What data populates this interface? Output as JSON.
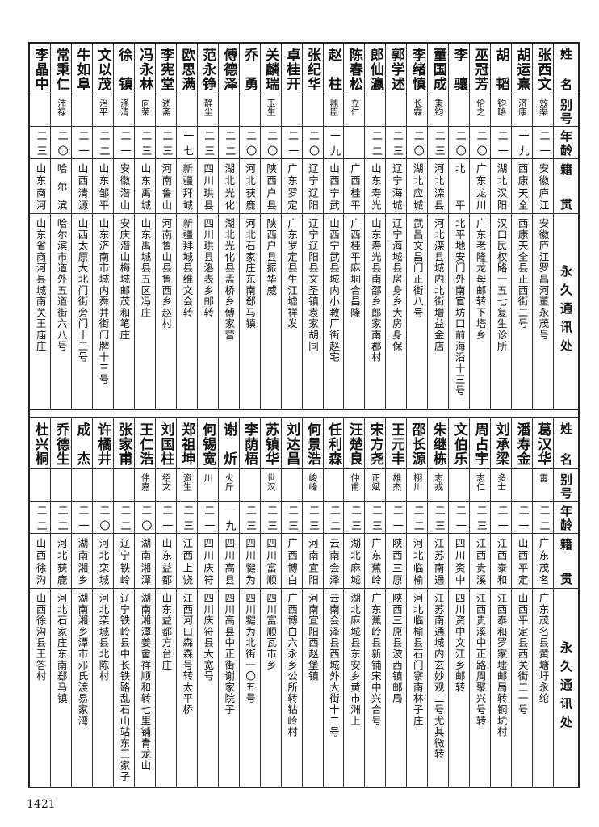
{
  "headers": {
    "name": "姓名",
    "alias": "别号",
    "age": "年龄",
    "place": "籍贯",
    "addr": "永久通讯处"
  },
  "top_rows": [
    {
      "name": "张西文",
      "alias": "效渠",
      "age": "二一",
      "place": "安徽庐江",
      "addr": "安徽庐江罗昌河董永茂号"
    },
    {
      "name": "胡运熹",
      "alias": "济康",
      "age": "一九",
      "place": "西康天全",
      "addr": "西康天全县正西街二号"
    },
    {
      "name": "胡韬",
      "alias": "钧略",
      "age": "二一",
      "place": "湖北汉阳",
      "addr": "汉口民权路一五七复生诊所"
    },
    {
      "name": "巫冠芳",
      "alias": "伦之",
      "age": "二〇",
      "place": "广东龙川",
      "addr": "广东老隆龙母邮转下塔乡"
    },
    {
      "name": "李骧",
      "alias": "",
      "age": "二〇",
      "place": "北平",
      "addr": "北平地安门外南官坊口前海沿十三号"
    },
    {
      "name": "董国成",
      "alias": "秉钧",
      "age": "二三",
      "place": "河北滦县",
      "addr": "河北滦县城内北街增益金店"
    },
    {
      "name": "李绪慎",
      "alias": "长霖",
      "age": "二〇",
      "place": "湖北应城",
      "addr": "武昌文昌门正街八号"
    },
    {
      "name": "郭学述",
      "alias": "",
      "age": "二三",
      "place": "辽宁海城",
      "addr": "辽宁海城县房身乡大房身保"
    },
    {
      "name": "郎仙瀛",
      "alias": "",
      "age": "二二",
      "place": "山东寿光",
      "addr": "山东寿光县南邵乡郎家南郡村"
    },
    {
      "name": "陈春松",
      "alias": "立仁",
      "age": "",
      "place": "广西桂平",
      "addr": "广西桂平麻垌合昌隆"
    },
    {
      "name": "赵柱",
      "alias": "鼎臣",
      "age": "一九",
      "place": "山西宁武",
      "addr": "山西宁武县城内小教厂街赵宅"
    },
    {
      "name": "张纪华",
      "alias": "",
      "age": "二〇",
      "place": "辽宁辽阳",
      "addr": "辽宁辽阳县文圣镇袁家胡同"
    },
    {
      "name": "卓桂开",
      "alias": "",
      "age": "二一",
      "place": "广东罗定",
      "addr": "广东罗定县生江墟祥发"
    },
    {
      "name": "关麟瑞",
      "alias": "玉生",
      "age": "二〇",
      "place": "陕西户县",
      "addr": "陕西户县振华威"
    },
    {
      "name": "乔勇",
      "alias": "",
      "age": "二〇",
      "place": "河北获鹿",
      "addr": "河北石家庄东南郄马镇"
    },
    {
      "name": "傅德泽",
      "alias": "",
      "age": "二二",
      "place": "湖北光化",
      "addr": "湖北光化县孟桥乡傅家营"
    },
    {
      "name": "范永铮",
      "alias": "静尘",
      "age": "二三",
      "place": "四川珙县",
      "addr": "四川珙县洛表乡邮转"
    },
    {
      "name": "欧思满",
      "alias": "",
      "age": "一七",
      "place": "新疆拜城",
      "addr": "新疆拜城县维文会转"
    },
    {
      "name": "李宪堂",
      "alias": "述斋",
      "age": "二三",
      "place": "河南鲁山",
      "addr": "河南鲁山县鲁西乡赵村"
    },
    {
      "name": "冯永林",
      "alias": "向荣",
      "age": "二三",
      "place": "山东禹城",
      "addr": "山东禹城县五区冯庄"
    },
    {
      "name": "徐镇",
      "alias": "涤清",
      "age": "二一",
      "place": "安徽潜山",
      "addr": "安庆潜山梅城邮茂和笔庄"
    },
    {
      "name": "文以茂",
      "alias": "治平",
      "age": "二二",
      "place": "山东邹平",
      "addr": "山东济南市城内舜井街门牌十三号"
    },
    {
      "name": "牛如阜",
      "alias": "",
      "age": "二一",
      "place": "山西清源",
      "addr": "山西太原大北门街旁门十三号"
    },
    {
      "name": "常秉仁",
      "alias": "沛禄",
      "age": "二〇",
      "place": "哈尔滨",
      "addr": "哈尔滨市道外五道街六八号"
    },
    {
      "name": "李晶中",
      "alias": "",
      "age": "二三",
      "place": "山东商河",
      "addr": "山东省商河县城南关王庙庄"
    }
  ],
  "bottom_rows": [
    {
      "name": "葛汉华",
      "alias": "雷",
      "age": "二二",
      "place": "广东茂名",
      "addr": "广东茂名县黄塘圩永纶"
    },
    {
      "name": "潘寿金",
      "alias": "",
      "age": "二一",
      "place": "山西平定",
      "addr": "山西平定县西关街二一号"
    },
    {
      "name": "刘承梁",
      "alias": "多士",
      "age": "二一",
      "place": "江西泰和",
      "addr": "江西泰和罗家墟邮局转铜坑村"
    },
    {
      "name": "周占宇",
      "alias": "志仁",
      "age": "二三",
      "place": "江西贵溪",
      "addr": "江西贵溪中正路周聚兴号转"
    },
    {
      "name": "文伯乐",
      "alias": "",
      "age": "二一",
      "place": "四川资中",
      "addr": "四川资中文江乡邮转"
    },
    {
      "name": "朱继栋",
      "alias": "志戎",
      "age": "二三",
      "place": "江苏南通",
      "addr": "江苏南通城内玄妙观二号尤其微转"
    },
    {
      "name": "邵长源",
      "alias": "栩川",
      "age": "二二",
      "place": "河北临榆",
      "addr": "河北临榆县石门寨南林子庄"
    },
    {
      "name": "王元丰",
      "alias": "雄杰",
      "age": "二一",
      "place": "陕西三原",
      "addr": "陕西三原县波西镇邮局"
    },
    {
      "name": "宋方尧",
      "alias": "正斌",
      "age": "二三",
      "place": "广东蕉岭",
      "addr": "广东蕉岭县新铺宋中兴合号"
    },
    {
      "name": "汪楚良",
      "alias": "仲甫",
      "age": "二三",
      "place": "湖北麻城",
      "addr": "湖北麻城县东安乡黄市洲上"
    },
    {
      "name": "任利森",
      "alias": "",
      "age": "二二",
      "place": "云南会泽",
      "addr": "云南会泽县西城外大街十二号"
    },
    {
      "name": "何景浩",
      "alias": "峻峰",
      "age": "二三",
      "place": "河南宜阳",
      "addr": "河南宜阳西赵堡镇"
    },
    {
      "name": "刘达昌",
      "alias": "",
      "age": "二三",
      "place": "广西博白",
      "addr": "广西博白六永乡公所转钻岭村"
    },
    {
      "name": "苏镇华",
      "alias": "世汉",
      "age": "二三",
      "place": "四川富顺",
      "addr": "四川富顺瓦市乡"
    },
    {
      "name": "李荫梧",
      "alias": "",
      "age": "二三",
      "place": "四川犍为",
      "addr": "四川犍为北街一〇五号"
    },
    {
      "name": "谢炘",
      "alias": "火斤",
      "age": "一九",
      "place": "四川高县",
      "addr": "四川高县中正街谢家院子"
    },
    {
      "name": "何锡宽",
      "alias": "川",
      "age": "二一",
      "place": "四川庆符",
      "addr": "四川庆符县大宽号"
    },
    {
      "name": "郑祖坤",
      "alias": "资生",
      "age": "二三",
      "place": "江西上饶",
      "addr": "江西河口森森号转太平桥"
    },
    {
      "name": "刘国柱",
      "alias": "绍文",
      "age": "二一",
      "place": "山东益都",
      "addr": "山东益都方台庄"
    },
    {
      "name": "王仁浩",
      "alias": "伟嘉",
      "age": "二〇",
      "place": "湖南湘潭",
      "addr": "湖南湘潭姜畲祥顺和转七里铺青龙山"
    },
    {
      "name": "张家甫",
      "alias": "",
      "age": "二二",
      "place": "辽宁铁岭",
      "addr": "辽宁铁岭县中长铁路乱石山站东三家子"
    },
    {
      "name": "许橘井",
      "alias": "",
      "age": "二〇",
      "place": "河北栾城",
      "addr": "河北栾城县北陈村"
    },
    {
      "name": "成杰",
      "alias": "",
      "age": "二一",
      "place": "湖南湘乡",
      "addr": "湖南湘乡潭市邓氏渡易家湾"
    },
    {
      "name": "乔德生",
      "alias": "",
      "age": "二二",
      "place": "河北获鹿",
      "addr": "河北石家庄东南郄马镇"
    },
    {
      "name": "杜兴桐",
      "alias": "",
      "age": "二二",
      "place": "山西徐沟",
      "addr": "山西徐沟县王答村"
    }
  ],
  "page_number": "1421"
}
